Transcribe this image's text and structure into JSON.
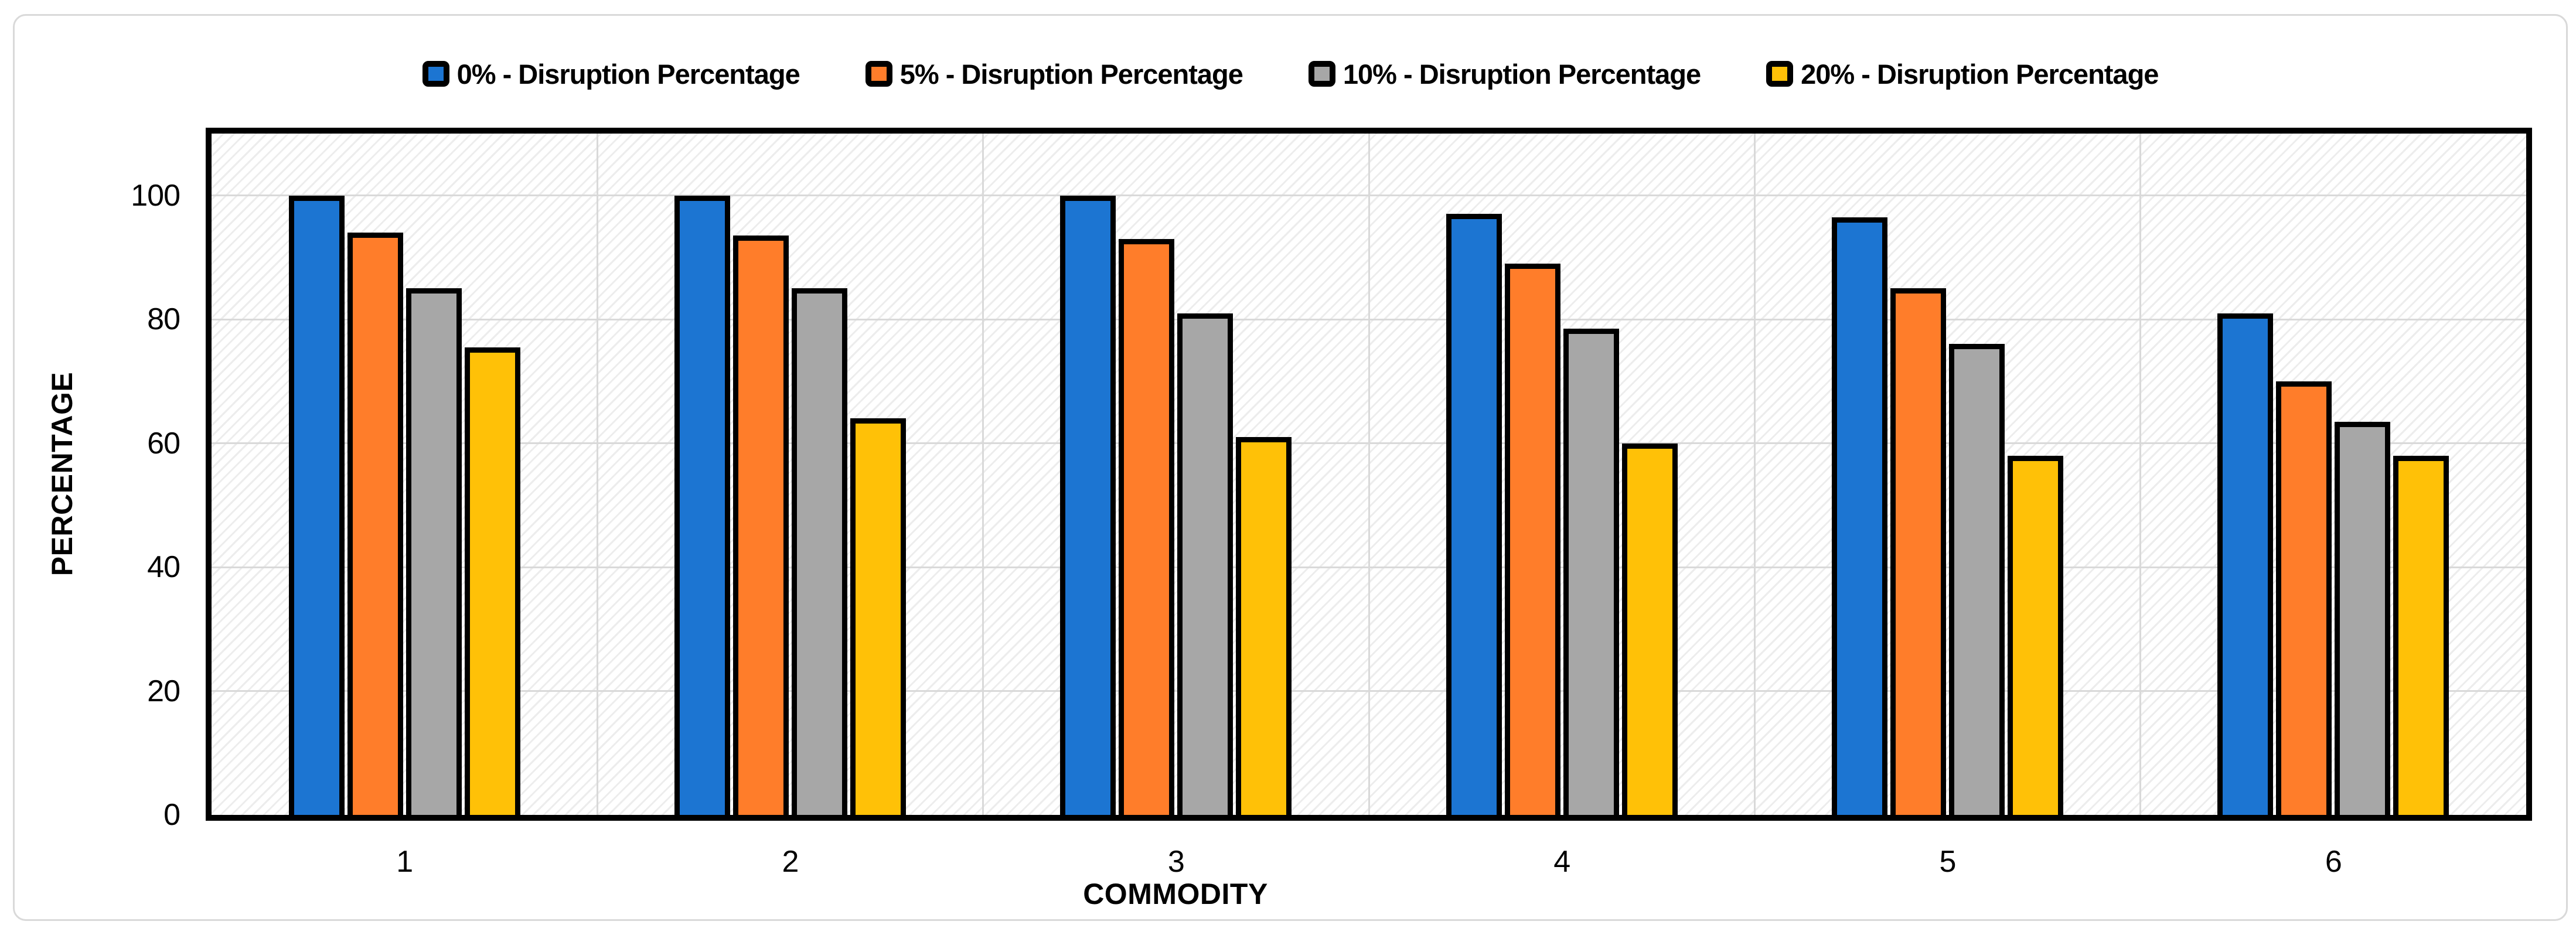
{
  "axes": {
    "y_title": "PERCENTAGE",
    "x_title": "COMMODITY",
    "y_ticks": [
      0,
      20,
      40,
      60,
      80,
      100
    ],
    "x_labels": [
      "1",
      "2",
      "3",
      "4",
      "5",
      "6"
    ]
  },
  "chart_data": {
    "type": "bar",
    "title": "",
    "categories": [
      "1",
      "2",
      "3",
      "4",
      "5",
      "6"
    ],
    "series": [
      {
        "name": "0% - Disruption Percentage",
        "color": "#1C75D2",
        "values": [
          100,
          100,
          100,
          97,
          96.5,
          81
        ]
      },
      {
        "name": "5% - Disruption Percentage",
        "color": "#FF7D2A",
        "values": [
          94,
          93.5,
          93,
          89,
          85,
          70
        ]
      },
      {
        "name": "10% - Disruption Percentage",
        "color": "#A7A7A7",
        "values": [
          85,
          85,
          81,
          78.5,
          76,
          63.5
        ]
      },
      {
        "name": "20% - Disruption Percentage",
        "color": "#FFC107",
        "values": [
          75.5,
          64,
          61,
          60,
          58,
          58
        ]
      }
    ],
    "xlabel": "COMMODITY",
    "ylabel": "PERCENTAGE",
    "ylim": [
      0,
      110
    ],
    "y_major": 20,
    "grid": {
      "horizontal": true,
      "vertical": true,
      "color": "#d9d9d9"
    },
    "legend_position": "top",
    "plot_background": "diagonal-hatch",
    "bar_outline_color": "#000000"
  },
  "colors": {
    "card_border": "#d9d9d9",
    "gridline": "#d9d9d9",
    "axis_frame": "#000000",
    "series_blue": "#1C75D2",
    "series_orange": "#FF7D2A",
    "series_gray": "#A7A7A7",
    "series_yellow": "#FFC107"
  }
}
